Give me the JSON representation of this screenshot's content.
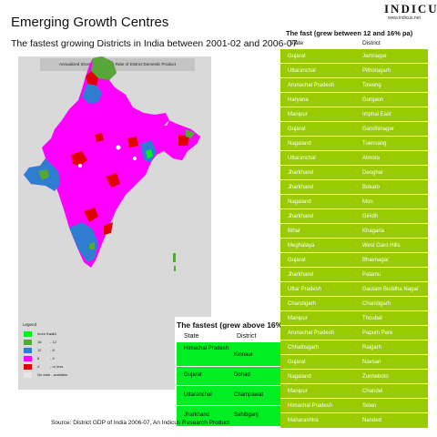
{
  "title": "Emerging Growth Centres",
  "subtitle": "The fastest growing Districts in India between 2001-02 and 2006-07",
  "logo": {
    "name": "INDICUS",
    "url": "www.indicus.net"
  },
  "map": {
    "caption": "Annualized Short-term Growth Rate of District Domestic Product",
    "legend": {
      "title": "Legend",
      "items": [
        {
          "color": "#00ee22",
          "low": "more than",
          "high": "- 16"
        },
        {
          "color": "#56a638",
          "low": "16",
          "high": "- 12"
        },
        {
          "color": "#2e7dd1",
          "low": "12",
          "high": "- 8"
        },
        {
          "color": "#ff00ff",
          "low": "8",
          "high": "- 4"
        },
        {
          "color": "#e00000",
          "low": "4",
          "high": "- or less"
        },
        {
          "color": "#e6e6e6",
          "low": "No data - available",
          "high": ""
        }
      ]
    }
  },
  "above16": {
    "title": "The fastest (grew above 16% pa)",
    "col_state": "State",
    "col_district": "District",
    "rows": [
      {
        "state": "Himachal Pradesh",
        "district": "Kinnaur"
      },
      {
        "state": "Gujarat",
        "district": "Dohad"
      },
      {
        "state": "Uttaranchal",
        "district": "Champawat"
      },
      {
        "state": "Jharkhand",
        "district": "Sahibganj"
      }
    ]
  },
  "between12_16": {
    "title": "The fast (grew between 12 and 16% pa)",
    "col_state": "State",
    "col_district": "District",
    "rows": [
      {
        "state": "Gujarat",
        "district": "Jamnagar"
      },
      {
        "state": "Uttaranchal",
        "district": "Pithoragarh"
      },
      {
        "state": "Arunachal Pradesh",
        "district": "Tawang"
      },
      {
        "state": "Haryana",
        "district": "Gurgaon"
      },
      {
        "state": "Manipur",
        "district": "Imphal East"
      },
      {
        "state": "Gujarat",
        "district": "Gandhinagar"
      },
      {
        "state": "Nagaland",
        "district": "Tuensang"
      },
      {
        "state": "Uttaranchal",
        "district": "Almora"
      },
      {
        "state": "Jharkhand",
        "district": "Deoghar"
      },
      {
        "state": "Jharkhand",
        "district": "Bokaro"
      },
      {
        "state": "Nagaland",
        "district": "Mon"
      },
      {
        "state": "Jharkhand",
        "district": "Giridih"
      },
      {
        "state": "Bihar",
        "district": "Khagaria"
      },
      {
        "state": "Meghalaya",
        "district": "West Garo Hills"
      },
      {
        "state": "Gujarat",
        "district": "Bhavnagar"
      },
      {
        "state": "Jharkhand",
        "district": "Palamu"
      },
      {
        "state": "Uttar Pradesh",
        "district": "Gautam Buddha Nagar"
      },
      {
        "state": "Chandigarh",
        "district": "Chandigarh"
      },
      {
        "state": "Manipur",
        "district": "Thoubal"
      },
      {
        "state": "Arunachal Pradesh",
        "district": "Papum Pare"
      },
      {
        "state": "Chhattisgarh",
        "district": "Raigarh"
      },
      {
        "state": "Gujarat",
        "district": "Navsari"
      },
      {
        "state": "Nagaland",
        "district": "Zunheboto"
      },
      {
        "state": "Manipur",
        "district": "Chandel"
      },
      {
        "state": "Himachal Pradesh",
        "district": "Solan"
      },
      {
        "state": "Maharashtra",
        "district": "Nanded"
      }
    ]
  },
  "source": "Source: District GDP of India 2006-07, An Indicus Research Product"
}
